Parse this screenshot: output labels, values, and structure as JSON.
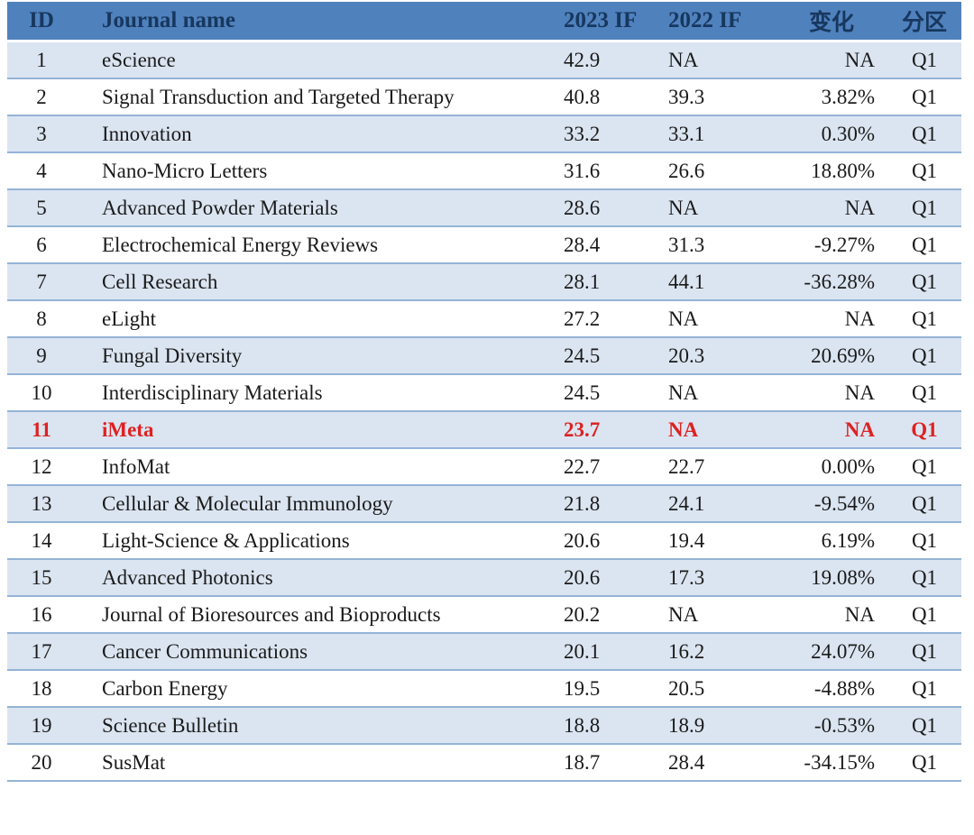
{
  "colors": {
    "header_bg": "#4f81bd",
    "header_text": "#17375e",
    "row_alt_bg": "#dbe5f1",
    "row_bg": "#ffffff",
    "divider": "#95b3d7",
    "body_text": "#1a1a1a",
    "highlight_text": "#dd2222"
  },
  "table": {
    "columns": [
      {
        "key": "id",
        "label": "ID"
      },
      {
        "key": "name",
        "label": "Journal name"
      },
      {
        "key": "if2023",
        "label": "2023 IF"
      },
      {
        "key": "if2022",
        "label": "2022 IF"
      },
      {
        "key": "change",
        "label": "变化"
      },
      {
        "key": "quartile",
        "label": "分区"
      }
    ],
    "rows": [
      {
        "id": "1",
        "name": "eScience",
        "if2023": "42.9",
        "if2022": "NA",
        "change": "NA",
        "quartile": "Q1",
        "highlight": false
      },
      {
        "id": "2",
        "name": "Signal Transduction and Targeted Therapy",
        "if2023": "40.8",
        "if2022": "39.3",
        "change": "3.82%",
        "quartile": "Q1",
        "highlight": false
      },
      {
        "id": "3",
        "name": "Innovation",
        "if2023": "33.2",
        "if2022": "33.1",
        "change": "0.30%",
        "quartile": "Q1",
        "highlight": false
      },
      {
        "id": "4",
        "name": "Nano-Micro Letters",
        "if2023": "31.6",
        "if2022": "26.6",
        "change": "18.80%",
        "quartile": "Q1",
        "highlight": false
      },
      {
        "id": "5",
        "name": "Advanced Powder Materials",
        "if2023": "28.6",
        "if2022": "NA",
        "change": "NA",
        "quartile": "Q1",
        "highlight": false
      },
      {
        "id": "6",
        "name": "Electrochemical Energy Reviews",
        "if2023": "28.4",
        "if2022": "31.3",
        "change": "-9.27%",
        "quartile": "Q1",
        "highlight": false
      },
      {
        "id": "7",
        "name": "Cell Research",
        "if2023": "28.1",
        "if2022": "44.1",
        "change": "-36.28%",
        "quartile": "Q1",
        "highlight": false
      },
      {
        "id": "8",
        "name": "eLight",
        "if2023": "27.2",
        "if2022": "NA",
        "change": "NA",
        "quartile": "Q1",
        "highlight": false
      },
      {
        "id": "9",
        "name": "Fungal Diversity",
        "if2023": "24.5",
        "if2022": "20.3",
        "change": "20.69%",
        "quartile": "Q1",
        "highlight": false
      },
      {
        "id": "10",
        "name": "Interdisciplinary Materials",
        "if2023": "24.5",
        "if2022": "NA",
        "change": "NA",
        "quartile": "Q1",
        "highlight": false
      },
      {
        "id": "11",
        "name": "iMeta",
        "if2023": "23.7",
        "if2022": "NA",
        "change": "NA",
        "quartile": "Q1",
        "highlight": true
      },
      {
        "id": "12",
        "name": "InfoMat",
        "if2023": "22.7",
        "if2022": "22.7",
        "change": "0.00%",
        "quartile": "Q1",
        "highlight": false
      },
      {
        "id": "13",
        "name": "Cellular & Molecular Immunology",
        "if2023": "21.8",
        "if2022": "24.1",
        "change": "-9.54%",
        "quartile": "Q1",
        "highlight": false
      },
      {
        "id": "14",
        "name": "Light-Science & Applications",
        "if2023": "20.6",
        "if2022": "19.4",
        "change": "6.19%",
        "quartile": "Q1",
        "highlight": false
      },
      {
        "id": "15",
        "name": "Advanced Photonics",
        "if2023": "20.6",
        "if2022": "17.3",
        "change": "19.08%",
        "quartile": "Q1",
        "highlight": false
      },
      {
        "id": "16",
        "name": "Journal of Bioresources and Bioproducts",
        "if2023": "20.2",
        "if2022": "NA",
        "change": "NA",
        "quartile": "Q1",
        "highlight": false
      },
      {
        "id": "17",
        "name": "Cancer Communications",
        "if2023": "20.1",
        "if2022": "16.2",
        "change": "24.07%",
        "quartile": "Q1",
        "highlight": false
      },
      {
        "id": "18",
        "name": "Carbon Energy",
        "if2023": "19.5",
        "if2022": "20.5",
        "change": "-4.88%",
        "quartile": "Q1",
        "highlight": false
      },
      {
        "id": "19",
        "name": "Science Bulletin",
        "if2023": "18.8",
        "if2022": "18.9",
        "change": "-0.53%",
        "quartile": "Q1",
        "highlight": false
      },
      {
        "id": "20",
        "name": "SusMat",
        "if2023": "18.7",
        "if2022": "28.4",
        "change": "-34.15%",
        "quartile": "Q1",
        "highlight": false
      }
    ]
  },
  "chart_data": {
    "type": "table",
    "title": "",
    "columns": [
      "ID",
      "Journal name",
      "2023 IF",
      "2022 IF",
      "变化",
      "分区"
    ],
    "rows": [
      [
        "1",
        "eScience",
        "42.9",
        "NA",
        "NA",
        "Q1"
      ],
      [
        "2",
        "Signal Transduction and Targeted Therapy",
        "40.8",
        "39.3",
        "3.82%",
        "Q1"
      ],
      [
        "3",
        "Innovation",
        "33.2",
        "33.1",
        "0.30%",
        "Q1"
      ],
      [
        "4",
        "Nano-Micro Letters",
        "31.6",
        "26.6",
        "18.80%",
        "Q1"
      ],
      [
        "5",
        "Advanced Powder Materials",
        "28.6",
        "NA",
        "NA",
        "Q1"
      ],
      [
        "6",
        "Electrochemical Energy Reviews",
        "28.4",
        "31.3",
        "-9.27%",
        "Q1"
      ],
      [
        "7",
        "Cell Research",
        "28.1",
        "44.1",
        "-36.28%",
        "Q1"
      ],
      [
        "8",
        "eLight",
        "27.2",
        "NA",
        "NA",
        "Q1"
      ],
      [
        "9",
        "Fungal Diversity",
        "24.5",
        "20.3",
        "20.69%",
        "Q1"
      ],
      [
        "10",
        "Interdisciplinary Materials",
        "24.5",
        "NA",
        "NA",
        "Q1"
      ],
      [
        "11",
        "iMeta",
        "23.7",
        "NA",
        "NA",
        "Q1"
      ],
      [
        "12",
        "InfoMat",
        "22.7",
        "22.7",
        "0.00%",
        "Q1"
      ],
      [
        "13",
        "Cellular & Molecular Immunology",
        "21.8",
        "24.1",
        "-9.54%",
        "Q1"
      ],
      [
        "14",
        "Light-Science & Applications",
        "20.6",
        "19.4",
        "6.19%",
        "Q1"
      ],
      [
        "15",
        "Advanced Photonics",
        "20.6",
        "17.3",
        "19.08%",
        "Q1"
      ],
      [
        "16",
        "Journal of Bioresources and Bioproducts",
        "20.2",
        "NA",
        "NA",
        "Q1"
      ],
      [
        "17",
        "Cancer Communications",
        "20.1",
        "16.2",
        "24.07%",
        "Q1"
      ],
      [
        "18",
        "Carbon Energy",
        "19.5",
        "20.5",
        "-4.88%",
        "Q1"
      ],
      [
        "19",
        "Science Bulletin",
        "18.8",
        "18.9",
        "-0.53%",
        "Q1"
      ],
      [
        "20",
        "SusMat",
        "18.7",
        "28.4",
        "-34.15%",
        "Q1"
      ]
    ],
    "highlighted_row_id": "11",
    "layout": "zebra-striped table, header blue, odd rows light blue, row 11 bold red"
  }
}
